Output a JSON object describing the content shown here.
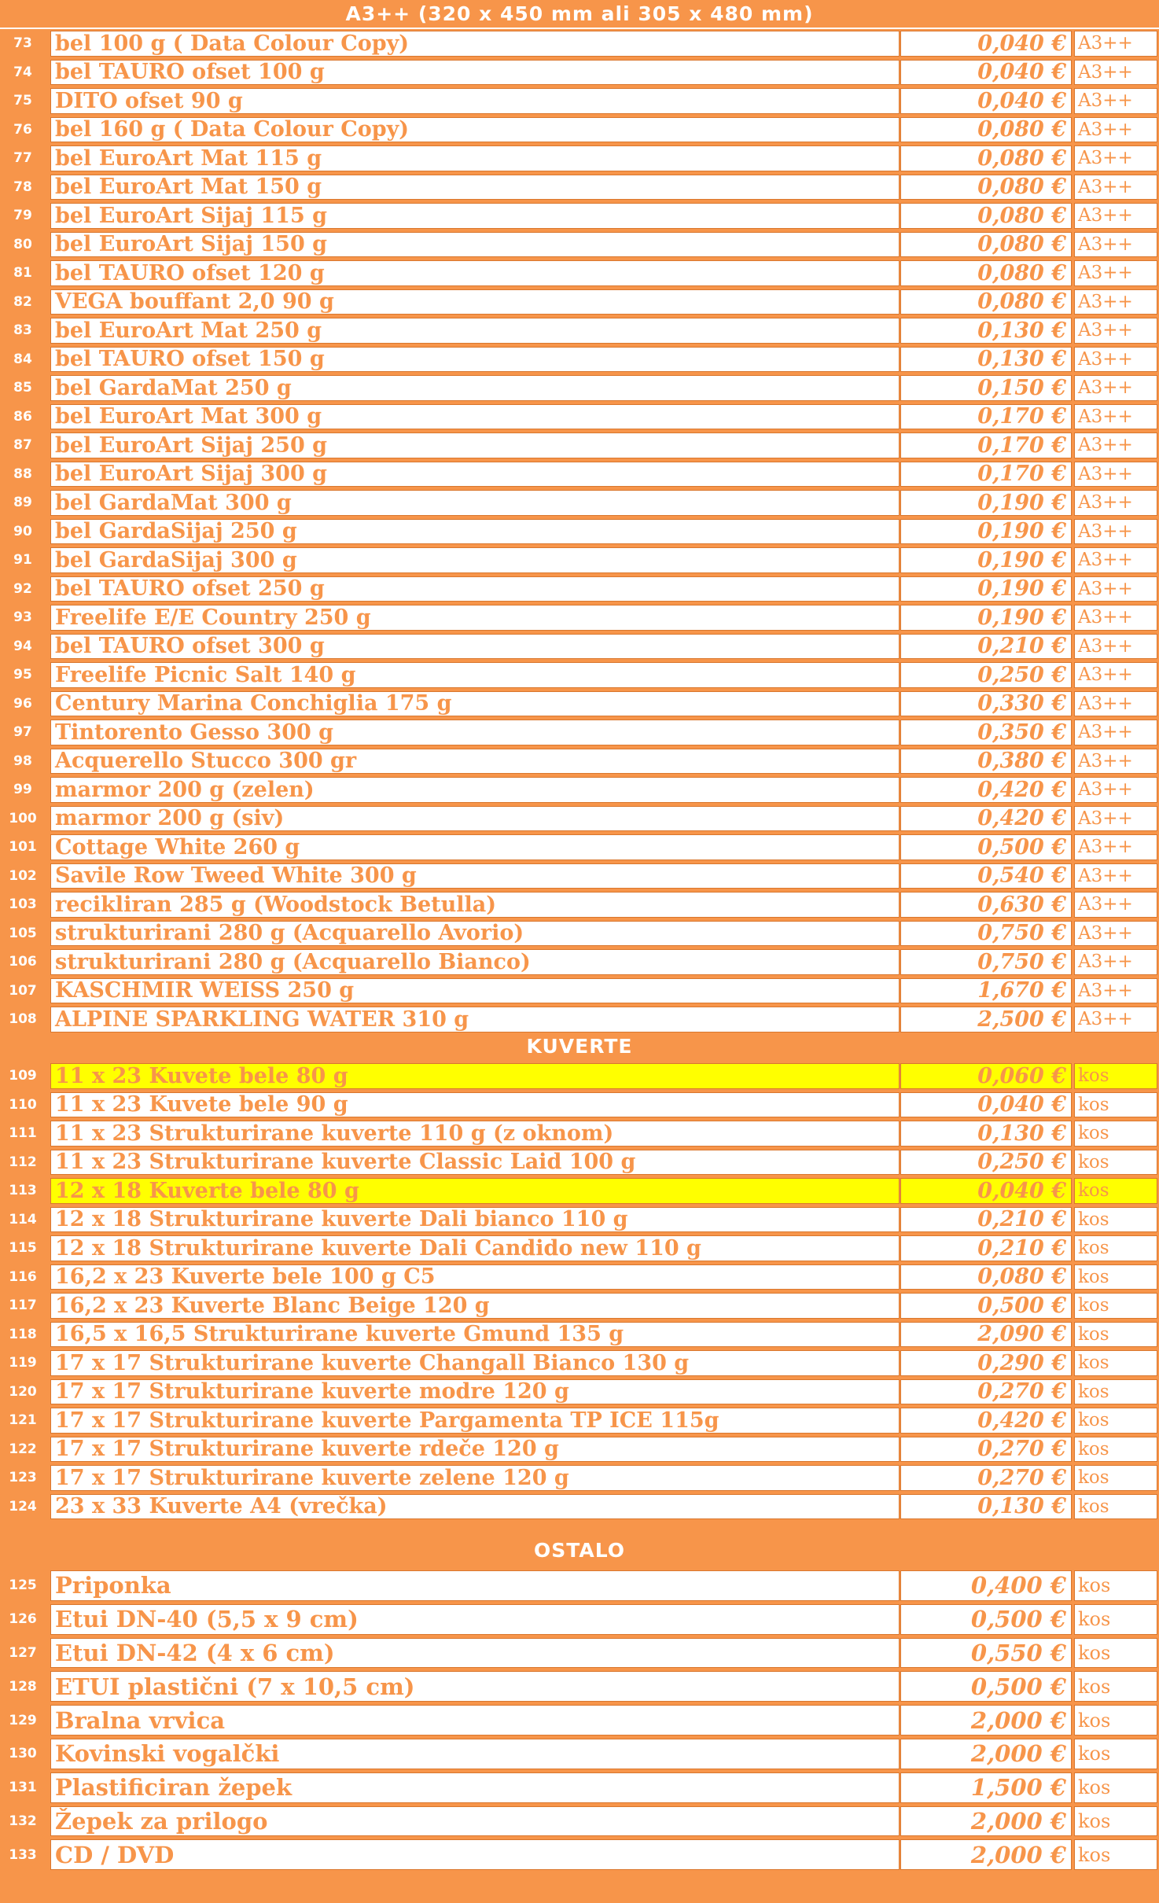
{
  "sections": [
    {
      "title": "A3++ (320 x 450 mm ali 305 x 480 mm)",
      "items": [
        {
          "num": "73",
          "name": "bel 100 g ( Data Colour Copy)",
          "price": "0,040 €",
          "unit": "A3++"
        },
        {
          "num": "74",
          "name": "bel TAURO ofset 100 g",
          "price": "0,040 €",
          "unit": "A3++"
        },
        {
          "num": "75",
          "name": "DITO ofset 90 g",
          "price": "0,040 €",
          "unit": "A3++"
        },
        {
          "num": "76",
          "name": "bel 160 g ( Data Colour Copy)",
          "price": "0,080 €",
          "unit": "A3++"
        },
        {
          "num": "77",
          "name": "bel EuroArt Mat 115 g",
          "price": "0,080 €",
          "unit": "A3++"
        },
        {
          "num": "78",
          "name": "bel EuroArt Mat 150 g",
          "price": "0,080 €",
          "unit": "A3++"
        },
        {
          "num": "79",
          "name": "bel EuroArt Sijaj 115 g",
          "price": "0,080 €",
          "unit": "A3++"
        },
        {
          "num": "80",
          "name": "bel EuroArt Sijaj 150 g",
          "price": "0,080 €",
          "unit": "A3++"
        },
        {
          "num": "81",
          "name": "bel TAURO ofset 120 g",
          "price": "0,080 €",
          "unit": "A3++"
        },
        {
          "num": "82",
          "name": "VEGA bouffant 2,0 90 g",
          "price": "0,080 €",
          "unit": "A3++"
        },
        {
          "num": "83",
          "name": "bel EuroArt Mat 250 g",
          "price": "0,130 €",
          "unit": "A3++"
        },
        {
          "num": "84",
          "name": "bel TAURO ofset 150 g",
          "price": "0,130 €",
          "unit": "A3++"
        },
        {
          "num": "85",
          "name": "bel GardaMat 250 g",
          "price": "0,150 €",
          "unit": "A3++"
        },
        {
          "num": "86",
          "name": "bel EuroArt Mat 300 g",
          "price": "0,170 €",
          "unit": "A3++"
        },
        {
          "num": "87",
          "name": "bel EuroArt Sijaj 250 g",
          "price": "0,170 €",
          "unit": "A3++"
        },
        {
          "num": "88",
          "name": "bel EuroArt Sijaj 300 g",
          "price": "0,170 €",
          "unit": "A3++"
        },
        {
          "num": "89",
          "name": "bel GardaMat 300 g",
          "price": "0,190 €",
          "unit": "A3++"
        },
        {
          "num": "90",
          "name": "bel GardaSijaj 250 g",
          "price": "0,190 €",
          "unit": "A3++"
        },
        {
          "num": "91",
          "name": "bel GardaSijaj 300 g",
          "price": "0,190 €",
          "unit": "A3++"
        },
        {
          "num": "92",
          "name": "bel TAURO ofset 250 g",
          "price": "0,190 €",
          "unit": "A3++"
        },
        {
          "num": "93",
          "name": "Freelife E/E Country 250 g",
          "price": "0,190 €",
          "unit": "A3++"
        },
        {
          "num": "94",
          "name": "bel TAURO ofset 300 g",
          "price": "0,210 €",
          "unit": "A3++"
        },
        {
          "num": "95",
          "name": "Freelife Picnic Salt 140 g",
          "price": "0,250 €",
          "unit": "A3++"
        },
        {
          "num": "96",
          "name": "Century Marina Conchiglia 175 g",
          "price": "0,330 €",
          "unit": "A3++"
        },
        {
          "num": "97",
          "name": "Tintorento Gesso 300 g",
          "price": "0,350 €",
          "unit": "A3++"
        },
        {
          "num": "98",
          "name": "Acquerello Stucco 300 gr",
          "price": "0,380 €",
          "unit": "A3++"
        },
        {
          "num": "99",
          "name": "marmor 200 g (zelen)",
          "price": "0,420 €",
          "unit": "A3++"
        },
        {
          "num": "100",
          "name": "marmor 200 g (siv)",
          "price": "0,420 €",
          "unit": "A3++"
        },
        {
          "num": "101",
          "name": "Cottage White 260 g",
          "price": "0,500 €",
          "unit": "A3++"
        },
        {
          "num": "102",
          "name": "Savile Row Tweed White 300 g",
          "price": "0,540 €",
          "unit": "A3++"
        },
        {
          "num": "103",
          "name": "recikliran 285 g (Woodstock Betulla)",
          "price": "0,630 €",
          "unit": "A3++"
        },
        {
          "num": "105",
          "name": "strukturirani 280 g (Acquarello Avorio)",
          "price": "0,750 €",
          "unit": "A3++"
        },
        {
          "num": "106",
          "name": "strukturirani 280 g (Acquarello Bianco)",
          "price": "0,750 €",
          "unit": "A3++"
        },
        {
          "num": "107",
          "name": "KASCHMIR WEISS 250 g",
          "price": "1,670 €",
          "unit": "A3++"
        },
        {
          "num": "108",
          "name": "ALPINE SPARKLING WATER 310 g",
          "price": "2,500 €",
          "unit": "A3++"
        }
      ]
    },
    {
      "title": "KUVERTE",
      "items": [
        {
          "num": "109",
          "name": "11 x 23 Kuvete bele 80 g",
          "price": "0,060 €",
          "unit": "kos",
          "highlight": true
        },
        {
          "num": "110",
          "name": "11 x 23 Kuvete bele 90 g",
          "price": "0,040 €",
          "unit": "kos"
        },
        {
          "num": "111",
          "name": "11 x 23 Strukturirane kuverte 110 g (z oknom)",
          "price": "0,130 €",
          "unit": "kos"
        },
        {
          "num": "112",
          "name": "11 x 23 Strukturirane kuverte Classic Laid 100 g",
          "price": "0,250 €",
          "unit": "kos"
        },
        {
          "num": "113",
          "name": "12 x 18 Kuverte bele 80 g",
          "price": "0,040 €",
          "unit": "kos",
          "highlight": true
        },
        {
          "num": "114",
          "name": "12 x 18 Strukturirane kuverte Dali bianco 110 g",
          "price": "0,210 €",
          "unit": "kos"
        },
        {
          "num": "115",
          "name": "12 x 18 Strukturirane kuverte Dali Candido new 110 g",
          "price": "0,210 €",
          "unit": "kos"
        },
        {
          "num": "116",
          "name": "16,2 x 23 Kuverte bele 100 g C5",
          "price": "0,080 €",
          "unit": "kos"
        },
        {
          "num": "117",
          "name": "16,2 x 23 Kuverte Blanc Beige 120 g",
          "price": "0,500 €",
          "unit": "kos"
        },
        {
          "num": "118",
          "name": "16,5 x 16,5 Strukturirane kuverte Gmund 135 g",
          "price": "2,090 €",
          "unit": "kos"
        },
        {
          "num": "119",
          "name": "17 x 17 Strukturirane kuverte Changall Bianco 130 g",
          "price": "0,290 €",
          "unit": "kos"
        },
        {
          "num": "120",
          "name": "17 x 17 Strukturirane kuverte modre 120 g",
          "price": "0,270 €",
          "unit": "kos"
        },
        {
          "num": "121",
          "name": "17 x 17 Strukturirane kuverte Pargamenta TP ICE 115g",
          "price": "0,420 €",
          "unit": "kos"
        },
        {
          "num": "122",
          "name": "17 x 17 Strukturirane kuverte rdeče 120 g",
          "price": "0,270 €",
          "unit": "kos"
        },
        {
          "num": "123",
          "name": "17 x 17 Strukturirane kuverte zelene 120 g",
          "price": "0,270 €",
          "unit": "kos"
        },
        {
          "num": "124",
          "name": "23 x 33 Kuverte A4 (vrečka)",
          "price": "0,130 €",
          "unit": "kos"
        }
      ]
    },
    {
      "title": "OSTALO",
      "items": [
        {
          "num": "125",
          "name": "Priponka",
          "price": "0,400 €",
          "unit": "kos"
        },
        {
          "num": "126",
          "name": "Etui DN-40 (5,5 x 9 cm)",
          "price": "0,500 €",
          "unit": "kos"
        },
        {
          "num": "127",
          "name": "Etui DN-42 (4 x 6 cm)",
          "price": "0,550 €",
          "unit": "kos"
        },
        {
          "num": "128",
          "name": "ETUI plastični (7 x 10,5 cm)",
          "price": "0,500 €",
          "unit": "kos"
        },
        {
          "num": "129",
          "name": "Bralna vrvica",
          "price": "2,000 €",
          "unit": "kos"
        },
        {
          "num": "130",
          "name": "Kovinski vogalčki",
          "price": "2,000 €",
          "unit": "kos"
        },
        {
          "num": "131",
          "name": "Plastificiran žepek",
          "price": "1,500 €",
          "unit": "kos"
        },
        {
          "num": "132",
          "name": "Žepek za prilogo",
          "price": "2,000 €",
          "unit": "kos"
        },
        {
          "num": "133",
          "name": "CD / DVD",
          "price": "2,000 €",
          "unit": "kos"
        }
      ]
    }
  ]
}
